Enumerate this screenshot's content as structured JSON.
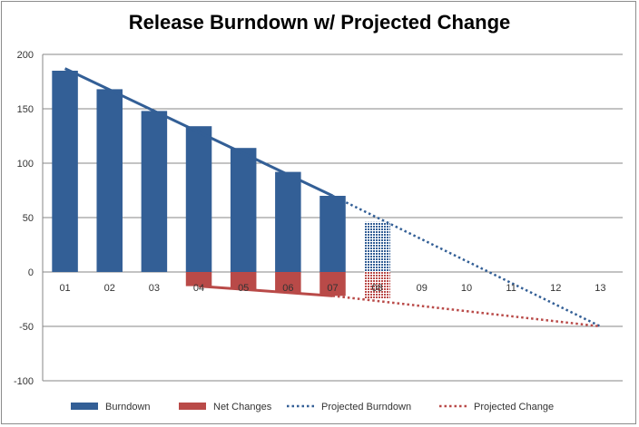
{
  "chart_data": {
    "type": "bar",
    "title": "Release Burndown w/ Projected Change",
    "xlabel": "",
    "ylabel": "",
    "ylim": [
      -100,
      200
    ],
    "yticks": [
      -100,
      -50,
      0,
      50,
      100,
      150,
      200
    ],
    "grid": true,
    "legend_position": "bottom",
    "categories": [
      "01",
      "02",
      "03",
      "04",
      "05",
      "06",
      "07",
      "08",
      "09",
      "10",
      "11",
      "12",
      "13"
    ],
    "series": [
      {
        "name": "Burndown",
        "kind": "bar",
        "color": "#335f96",
        "values": [
          185,
          168,
          148,
          134,
          114,
          92,
          70,
          null,
          null,
          null,
          null,
          null,
          null
        ]
      },
      {
        "name": "Burndown",
        "kind": "bar-projected",
        "color": "#335f96",
        "pattern": "dotted",
        "values": [
          null,
          null,
          null,
          null,
          null,
          null,
          null,
          46,
          null,
          null,
          null,
          null,
          null
        ]
      },
      {
        "name": "Net Changes",
        "kind": "bar",
        "color": "#b94a48",
        "values": [
          null,
          null,
          null,
          -13,
          -16,
          -19,
          -22,
          null,
          null,
          null,
          null,
          null,
          null
        ]
      },
      {
        "name": "Net Changes",
        "kind": "bar-projected",
        "color": "#b94a48",
        "pattern": "dotted",
        "values": [
          null,
          null,
          null,
          null,
          null,
          null,
          null,
          -25,
          null,
          null,
          null,
          null,
          null
        ]
      },
      {
        "name": "Burndown trend",
        "kind": "line",
        "color": "#335f96",
        "values": [
          187,
          null,
          null,
          null,
          null,
          null,
          70,
          null,
          null,
          null,
          null,
          null,
          null
        ]
      },
      {
        "name": "Projected Burndown",
        "kind": "line-dotted",
        "color": "#335f96",
        "values": [
          null,
          null,
          null,
          null,
          null,
          null,
          70,
          null,
          null,
          null,
          null,
          null,
          -50
        ]
      },
      {
        "name": "Net Changes trend",
        "kind": "line",
        "color": "#b94a48",
        "values": [
          null,
          null,
          null,
          -13,
          null,
          null,
          -22,
          null,
          null,
          null,
          null,
          null,
          null
        ]
      },
      {
        "name": "Projected Change",
        "kind": "line-dotted",
        "color": "#b94a48",
        "values": [
          null,
          null,
          null,
          null,
          null,
          null,
          -22,
          null,
          null,
          null,
          null,
          null,
          -50
        ]
      }
    ],
    "legend": [
      {
        "label": "Burndown",
        "style": "box",
        "color": "#335f96"
      },
      {
        "label": "Net Changes",
        "style": "box",
        "color": "#b94a48"
      },
      {
        "label": "Projected Burndown",
        "style": "dotted",
        "color": "#335f96"
      },
      {
        "label": "Projected Change",
        "style": "dotted",
        "color": "#b94a48"
      }
    ]
  }
}
